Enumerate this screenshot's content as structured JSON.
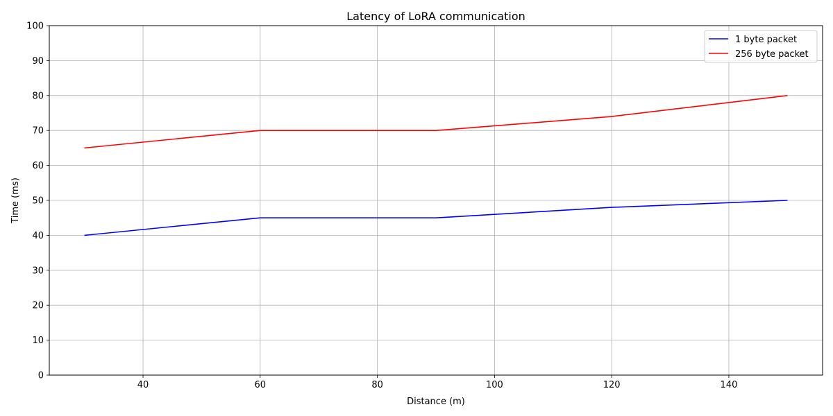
{
  "chart_data": {
    "type": "line",
    "title": "Latency of LoRA communication",
    "xlabel": "Distance (m)",
    "ylabel": "Time (ms)",
    "xlim": [
      24,
      156
    ],
    "ylim": [
      0,
      100
    ],
    "x_ticks": [
      40,
      60,
      80,
      100,
      120,
      140
    ],
    "y_ticks": [
      0,
      10,
      20,
      30,
      40,
      50,
      60,
      70,
      80,
      90,
      100
    ],
    "grid": true,
    "legend_position": "top-right",
    "x": [
      30,
      60,
      90,
      120,
      150
    ],
    "series": [
      {
        "name": "1 byte packet",
        "color": "#0000ff",
        "values": [
          40,
          45,
          45,
          48,
          50
        ]
      },
      {
        "name": "256 byte packet",
        "color": "#ff0000",
        "values": [
          65,
          70,
          70,
          74,
          80
        ]
      }
    ]
  }
}
